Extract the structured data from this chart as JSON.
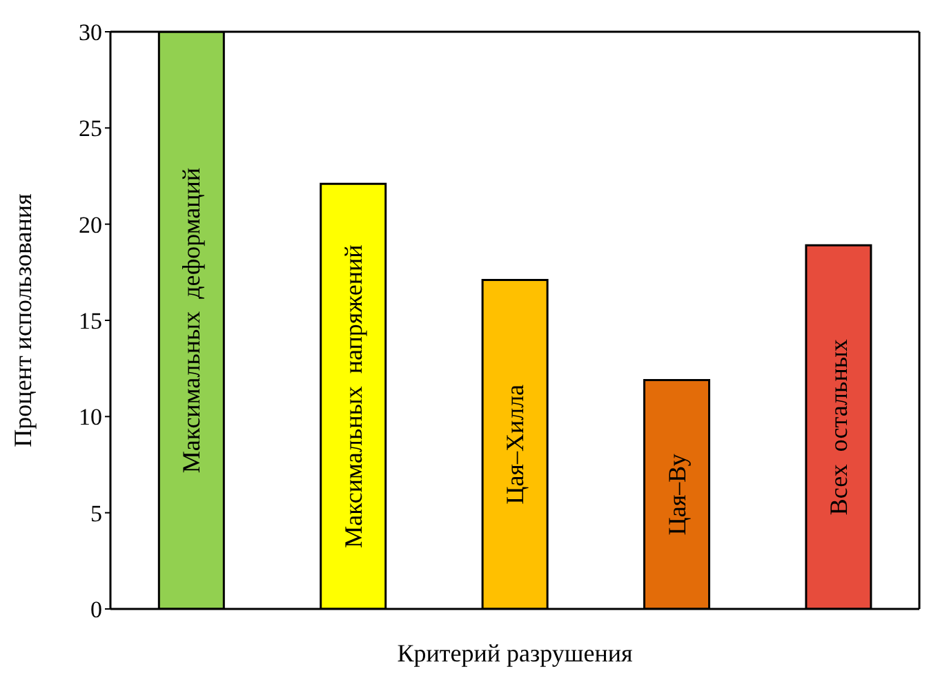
{
  "chart_data": {
    "type": "bar",
    "xlabel": "Критерий разрушения",
    "ylabel": "Процент использования",
    "categories": [
      "Максимальных  деформаций",
      "Максимальных  напряжений",
      "Цая–Хилла",
      "Цая–Ву",
      "Всех  остальных"
    ],
    "values": [
      30,
      22.1,
      17.1,
      11.9,
      18.9
    ],
    "colors": [
      "#92d050",
      "#ffff00",
      "#ffc000",
      "#e36c09",
      "#e74c3c"
    ],
    "ylim": [
      0,
      30
    ],
    "yticks": [
      0,
      5,
      10,
      15,
      20,
      25,
      30
    ],
    "grid": false,
    "legend": false
  }
}
